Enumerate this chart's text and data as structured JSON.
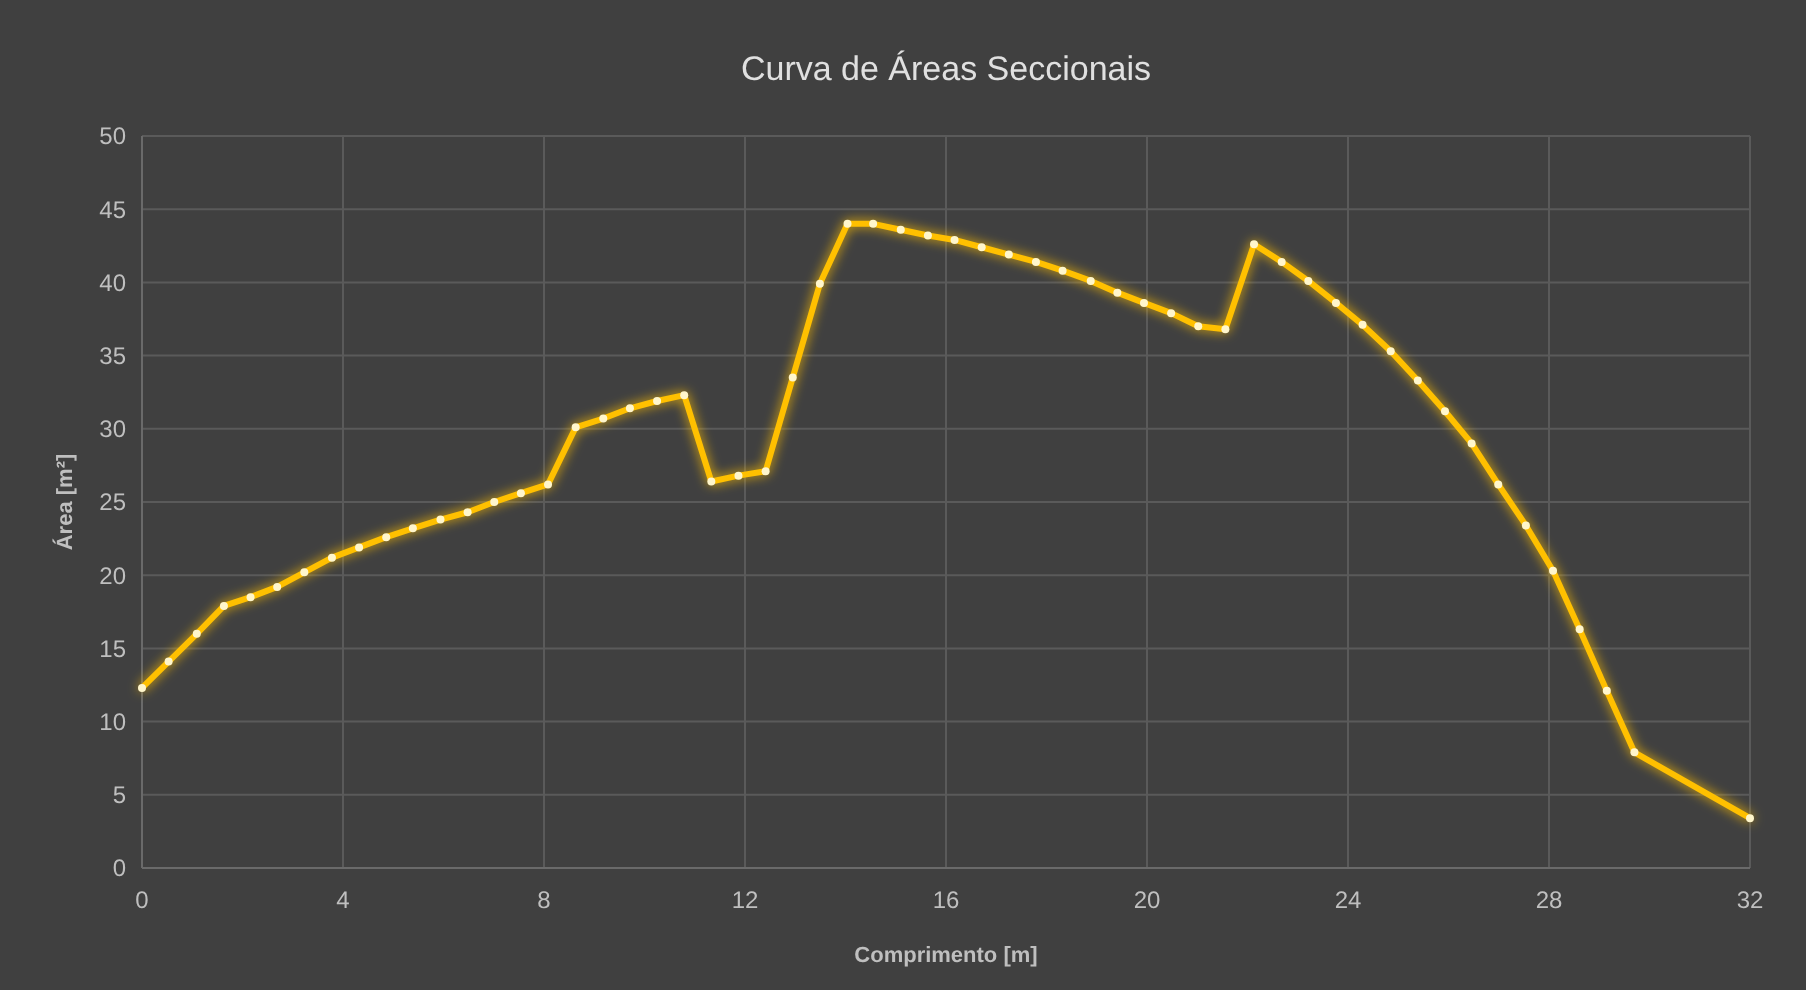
{
  "chart_data": {
    "type": "line",
    "title": "Curva de Áreas Seccionais",
    "xlabel": "Comprimento [m]",
    "ylabel": "Área [m²]",
    "x": [
      0,
      0.53,
      1.09,
      1.63,
      2.16,
      2.69,
      3.23,
      3.78,
      4.32,
      4.86,
      5.39,
      5.94,
      6.48,
      7.01,
      7.54,
      8.08,
      8.63,
      9.18,
      9.71,
      10.25,
      10.79,
      11.33,
      11.87,
      12.41,
      12.95,
      13.49,
      14.04,
      14.55,
      15.1,
      15.64,
      16.17,
      16.71,
      17.25,
      17.79,
      18.32,
      18.88,
      19.41,
      19.94,
      20.48,
      21.02,
      21.56,
      22.13,
      22.68,
      23.21,
      23.76,
      24.29,
      24.85,
      25.39,
      25.93,
      26.46,
      26.99,
      27.54,
      28.08,
      28.61,
      29.15,
      29.7,
      32
    ],
    "series": [
      {
        "color": "#ffc000",
        "values": [
          12.3,
          14.1,
          16,
          17.9,
          18.5,
          19.2,
          20.2,
          21.2,
          21.9,
          22.6,
          23.2,
          23.8,
          24.3,
          25,
          25.6,
          26.2,
          30.1,
          30.7,
          31.4,
          31.9,
          32.3,
          26.4,
          26.8,
          27.1,
          33.5,
          39.9,
          44,
          44,
          43.6,
          43.2,
          42.9,
          42.4,
          41.9,
          41.4,
          40.8,
          40.1,
          39.3,
          38.6,
          37.9,
          37,
          36.8,
          42.6,
          41.4,
          40.1,
          38.6,
          37.1,
          35.3,
          33.3,
          31.2,
          29,
          26.2,
          23.4,
          20.3,
          16.3,
          12.1,
          7.9,
          3.4
        ]
      }
    ],
    "xlim": [
      0,
      32
    ],
    "xticks": [
      0,
      4,
      8,
      12,
      16,
      20,
      24,
      28,
      32
    ],
    "ylim": [
      0,
      50
    ],
    "yticks": [
      0,
      5,
      10,
      15,
      20,
      25,
      30,
      35,
      40,
      45,
      50
    ],
    "grid": true,
    "marker": "circle",
    "line_style": "solid"
  }
}
